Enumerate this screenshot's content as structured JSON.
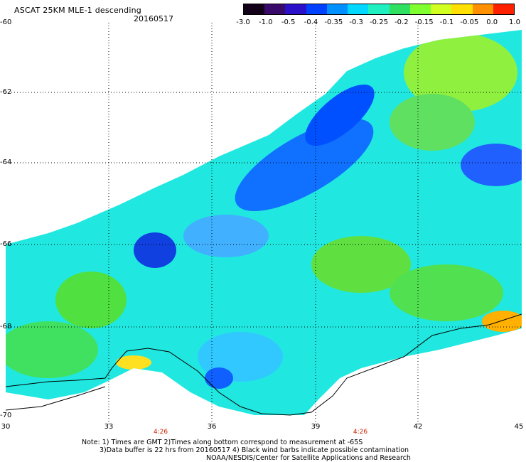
{
  "header": {
    "title": "ASCAT 25KM MLE-1 descending",
    "date": "20160517"
  },
  "colorbar": {
    "labels": [
      "-3.0",
      "-1.0",
      "-0.5",
      "-0.4",
      "-0.35",
      "-0.3",
      "-0.25",
      "-0.2",
      "-0.15",
      "-0.1",
      "-0.05",
      "0.0",
      "1.0"
    ],
    "colors": [
      "#120018",
      "#3a0a6a",
      "#2a10c8",
      "#0040ff",
      "#0090ff",
      "#00d8ff",
      "#20f0c0",
      "#30e060",
      "#80ff30",
      "#d0ff20",
      "#ffe000",
      "#ff9000",
      "#ff2000"
    ]
  },
  "axes": {
    "y_labels": [
      "-60",
      "-62",
      "-64",
      "-66",
      "-68",
      "-70"
    ],
    "x_labels": [
      "30",
      "33",
      "36",
      "39",
      "42",
      "45"
    ],
    "times": [
      "4:26",
      "4:26"
    ]
  },
  "notes": {
    "line1": "Note: 1) Times are GMT 2)Times along bottom correspond to measurement at -65S",
    "line2": "3)Data buffer is 22 hrs from 20160517 4) Black wind barbs indicate possible contamination",
    "line3": "NOAA/NESDIS/Center for Satellite Applications and Research"
  }
}
